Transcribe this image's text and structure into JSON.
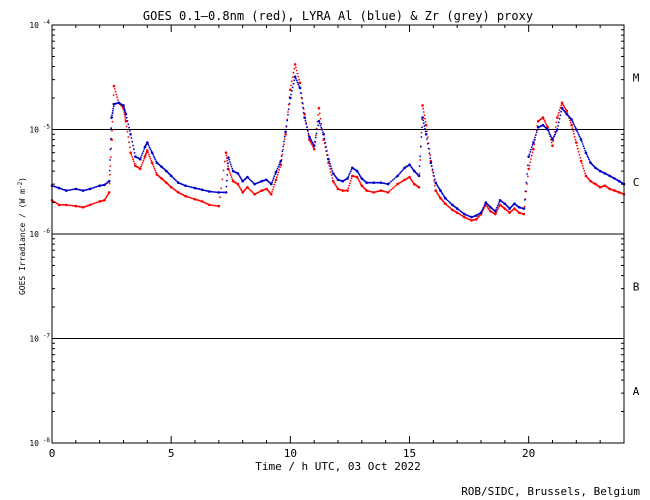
{
  "chart_data": {
    "type": "scatter",
    "title": "GOES 0.1—0.8nm (red), LYRA Al (blue) & Zr (grey) proxy",
    "xlabel": "Time / h UTC, 03 Oct 2022",
    "ylabel": "GOES Irradiance / (W m",
    "ylabel_sup": "-2",
    "ylabel_tail": ")",
    "xlim": [
      0,
      24
    ],
    "ylim": [
      1e-08,
      0.0001
    ],
    "yscale": "log",
    "x_ticks": [
      {
        "value": 0,
        "label": "0"
      },
      {
        "value": 5,
        "label": "5"
      },
      {
        "value": 10,
        "label": "10"
      },
      {
        "value": 15,
        "label": "15"
      },
      {
        "value": 20,
        "label": "20"
      }
    ],
    "y_ticks": [
      {
        "exp": -8,
        "base": "10",
        "sup": "-8"
      },
      {
        "exp": -7,
        "base": "10",
        "sup": "-7"
      },
      {
        "exp": -6,
        "base": "10",
        "sup": "-6"
      },
      {
        "exp": -5,
        "base": "10",
        "sup": "-5"
      },
      {
        "exp": -4,
        "base": "10",
        "sup": "-4"
      }
    ],
    "flare_classes": [
      {
        "label": "A",
        "exp": -7.5
      },
      {
        "label": "B",
        "exp": -6.5
      },
      {
        "label": "C",
        "exp": -5.5
      },
      {
        "label": "M",
        "exp": -4.5
      }
    ],
    "threshold_lines": [
      1e-07,
      1e-06,
      1e-05
    ],
    "series": [
      {
        "name": "GOES 0.1—0.8nm",
        "color": "#ff0000",
        "x": [
          0,
          0.3,
          0.6,
          1.0,
          1.3,
          1.6,
          2.0,
          2.2,
          2.4,
          2.5,
          2.6,
          2.8,
          3.0,
          3.1,
          3.3,
          3.5,
          3.7,
          3.9,
          4.0,
          4.2,
          4.4,
          4.6,
          4.8,
          5.0,
          5.3,
          5.6,
          6.0,
          6.3,
          6.6,
          7.0,
          7.3,
          7.4,
          7.6,
          7.8,
          8.0,
          8.2,
          8.5,
          8.8,
          9.0,
          9.2,
          9.4,
          9.6,
          9.8,
          10.0,
          10.2,
          10.4,
          10.6,
          10.8,
          11.0,
          11.2,
          11.4,
          11.6,
          11.8,
          12.0,
          12.2,
          12.4,
          12.6,
          12.8,
          13.0,
          13.2,
          13.5,
          13.8,
          14.1,
          14.5,
          14.8,
          15.0,
          15.2,
          15.4,
          15.55,
          15.7,
          15.9,
          16.1,
          16.3,
          16.5,
          16.8,
          17.0,
          17.3,
          17.6,
          17.8,
          18.0,
          18.2,
          18.4,
          18.6,
          18.8,
          19.0,
          19.2,
          19.4,
          19.6,
          19.8,
          20.0,
          20.2,
          20.4,
          20.6,
          20.8,
          21.0,
          21.2,
          21.4,
          21.6,
          21.8,
          22.0,
          22.2,
          22.4,
          22.6,
          22.8,
          23.0,
          23.2,
          23.4,
          23.6,
          23.8,
          24.0
        ],
        "y": [
          2.1e-06,
          1.9e-06,
          1.9e-06,
          1.85e-06,
          1.8e-06,
          1.9e-06,
          2.05e-06,
          2.1e-06,
          2.5e-06,
          8e-06,
          2.6e-05,
          1.8e-05,
          1.6e-05,
          1.2e-05,
          6e-06,
          4.5e-06,
          4.2e-06,
          5.5e-06,
          6.3e-06,
          4.8e-06,
          3.7e-06,
          3.4e-06,
          3.1e-06,
          2.8e-06,
          2.5e-06,
          2.3e-06,
          2.15e-06,
          2.05e-06,
          1.9e-06,
          1.85e-06,
          6e-06,
          4.2e-06,
          3.2e-06,
          3e-06,
          2.5e-06,
          2.8e-06,
          2.4e-06,
          2.6e-06,
          2.7e-06,
          2.4e-06,
          3.3e-06,
          4.6e-06,
          9e-06,
          2.4e-05,
          4.2e-05,
          2.8e-05,
          1.4e-05,
          8e-06,
          6.5e-06,
          1.6e-05,
          8e-06,
          4.8e-06,
          3.2e-06,
          2.7e-06,
          2.6e-06,
          2.6e-06,
          3.6e-06,
          3.5e-06,
          2.9e-06,
          2.6e-06,
          2.5e-06,
          2.6e-06,
          2.5e-06,
          3e-06,
          3.3e-06,
          3.5e-06,
          3e-06,
          2.8e-06,
          1.7e-05,
          1.1e-05,
          5e-06,
          2.6e-06,
          2.2e-06,
          1.95e-06,
          1.7e-06,
          1.6e-06,
          1.45e-06,
          1.35e-06,
          1.38e-06,
          1.55e-06,
          1.9e-06,
          1.65e-06,
          1.55e-06,
          1.9e-06,
          1.75e-06,
          1.6e-06,
          1.75e-06,
          1.6e-06,
          1.55e-06,
          4.2e-06,
          6.5e-06,
          1.2e-05,
          1.3e-05,
          1.05e-05,
          7e-06,
          1.3e-05,
          1.8e-05,
          1.5e-05,
          1.1e-05,
          7.5e-06,
          5e-06,
          3.6e-06,
          3.2e-06,
          3e-06,
          2.8e-06,
          2.9e-06,
          2.7e-06,
          2.6e-06,
          2.5e-06,
          2.4e-06
        ]
      },
      {
        "name": "LYRA Al",
        "color": "#0000cc",
        "x": [
          0,
          0.3,
          0.6,
          1.0,
          1.3,
          1.6,
          2.0,
          2.2,
          2.4,
          2.5,
          2.6,
          2.8,
          3.0,
          3.1,
          3.3,
          3.5,
          3.7,
          3.9,
          4.0,
          4.2,
          4.4,
          4.6,
          4.8,
          5.0,
          5.3,
          5.6,
          6.0,
          6.3,
          6.6,
          7.0,
          7.3,
          7.4,
          7.6,
          7.8,
          8.0,
          8.2,
          8.5,
          8.8,
          9.0,
          9.2,
          9.4,
          9.6,
          9.8,
          10.0,
          10.2,
          10.4,
          10.6,
          10.8,
          11.0,
          11.2,
          11.4,
          11.6,
          11.8,
          12.0,
          12.2,
          12.4,
          12.6,
          12.8,
          13.0,
          13.2,
          13.5,
          13.8,
          14.1,
          14.5,
          14.8,
          15.0,
          15.2,
          15.4,
          15.55,
          15.7,
          15.9,
          16.1,
          16.3,
          16.5,
          16.8,
          17.0,
          17.3,
          17.6,
          17.8,
          18.0,
          18.2,
          18.4,
          18.6,
          18.8,
          19.0,
          19.2,
          19.4,
          19.6,
          19.8,
          20.0,
          20.2,
          20.4,
          20.6,
          20.8,
          21.0,
          21.2,
          21.4,
          21.6,
          21.8,
          22.0,
          22.2,
          22.4,
          22.6,
          22.8,
          23.0,
          23.2,
          23.4,
          23.6,
          23.8,
          24.0
        ],
        "y": [
          2.9e-06,
          2.75e-06,
          2.6e-06,
          2.7e-06,
          2.6e-06,
          2.7e-06,
          2.9e-06,
          2.95e-06,
          3.2e-06,
          1.3e-05,
          1.75e-05,
          1.8e-05,
          1.7e-05,
          1.4e-05,
          9e-06,
          5.5e-06,
          5.2e-06,
          6.8e-06,
          7.5e-06,
          6e-06,
          4.8e-06,
          4.4e-06,
          4e-06,
          3.6e-06,
          3.1e-06,
          2.9e-06,
          2.75e-06,
          2.65e-06,
          2.55e-06,
          2.5e-06,
          2.5e-06,
          5.4e-06,
          4e-06,
          3.8e-06,
          3.2e-06,
          3.5e-06,
          3e-06,
          3.2e-06,
          3.3e-06,
          3e-06,
          3.9e-06,
          5e-06,
          9.5e-06,
          2e-05,
          3.2e-05,
          2.5e-05,
          1.3e-05,
          8.5e-06,
          7e-06,
          1.2e-05,
          9e-06,
          5.2e-06,
          3.8e-06,
          3.3e-06,
          3.2e-06,
          3.4e-06,
          4.3e-06,
          4e-06,
          3.4e-06,
          3.1e-06,
          3.1e-06,
          3.1e-06,
          3e-06,
          3.6e-06,
          4.3e-06,
          4.6e-06,
          4e-06,
          3.6e-06,
          1.3e-05,
          9e-06,
          4.8e-06,
          3.1e-06,
          2.6e-06,
          2.2e-06,
          1.9e-06,
          1.75e-06,
          1.55e-06,
          1.45e-06,
          1.5e-06,
          1.6e-06,
          2e-06,
          1.8e-06,
          1.65e-06,
          2.1e-06,
          1.95e-06,
          1.75e-06,
          1.95e-06,
          1.8e-06,
          1.75e-06,
          5.5e-06,
          7.5e-06,
          1.05e-05,
          1.1e-05,
          1e-05,
          8e-06,
          1e-05,
          1.6e-05,
          1.4e-05,
          1.25e-05,
          1e-05,
          8e-06,
          6e-06,
          4.8e-06,
          4.3e-06,
          4e-06,
          3.8e-06,
          3.6e-06,
          3.4e-06,
          3.2e-06,
          3e-06
        ]
      }
    ]
  },
  "footer": {
    "credit": "ROB/SIDC, Brussels, Belgium"
  }
}
